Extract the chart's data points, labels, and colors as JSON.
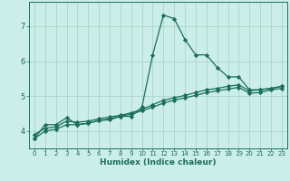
{
  "xlabel": "Humidex (Indice chaleur)",
  "bg_color": "#cceee8",
  "grid_color": "#aad4cc",
  "line_color": "#1a6e5e",
  "xlim": [
    -0.5,
    23.5
  ],
  "ylim": [
    3.5,
    7.7
  ],
  "yticks": [
    4,
    5,
    6,
    7
  ],
  "xticks": [
    0,
    1,
    2,
    3,
    4,
    5,
    6,
    7,
    8,
    9,
    10,
    11,
    12,
    13,
    14,
    15,
    16,
    17,
    18,
    19,
    20,
    21,
    22,
    23
  ],
  "line1_x": [
    0,
    1,
    2,
    3,
    4,
    5,
    6,
    7,
    8,
    9,
    10,
    11,
    12,
    13,
    14,
    15,
    16,
    17,
    18,
    19,
    20,
    21,
    22,
    23
  ],
  "line1_y": [
    3.78,
    4.18,
    4.18,
    4.38,
    4.18,
    4.22,
    4.3,
    4.32,
    4.42,
    4.42,
    4.68,
    6.18,
    7.32,
    7.22,
    6.62,
    6.18,
    6.18,
    5.82,
    5.55,
    5.55,
    5.18,
    5.18,
    5.22,
    5.28
  ],
  "line2_x": [
    0,
    1,
    2,
    3,
    4,
    5,
    6,
    7,
    8,
    9,
    10,
    11,
    12,
    13,
    14,
    15,
    16,
    17,
    18,
    19,
    20,
    21,
    22,
    23
  ],
  "line2_y": [
    3.9,
    4.08,
    4.12,
    4.28,
    4.25,
    4.28,
    4.35,
    4.4,
    4.45,
    4.52,
    4.62,
    4.75,
    4.88,
    4.95,
    5.02,
    5.1,
    5.18,
    5.22,
    5.28,
    5.32,
    5.15,
    5.18,
    5.22,
    5.28
  ],
  "line3_x": [
    0,
    1,
    2,
    3,
    4,
    5,
    6,
    7,
    8,
    9,
    10,
    11,
    12,
    13,
    14,
    15,
    16,
    17,
    18,
    19,
    20,
    21,
    22,
    23
  ],
  "line3_y": [
    3.78,
    4.0,
    4.05,
    4.18,
    4.18,
    4.22,
    4.3,
    4.35,
    4.42,
    4.48,
    4.58,
    4.68,
    4.8,
    4.88,
    4.95,
    5.02,
    5.1,
    5.15,
    5.2,
    5.25,
    5.08,
    5.1,
    5.18,
    5.22
  ]
}
